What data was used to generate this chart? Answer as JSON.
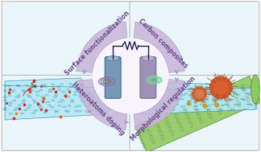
{
  "fig_width": 3.24,
  "fig_height": 1.89,
  "dpi": 100,
  "bg_color": "#ffffff",
  "quadrant_bg": "#eaf6fa",
  "arc_fill_color": "#c8b4d8",
  "arc_edge_color": "#b09ac8",
  "arc_text_color": "#6a4a8a",
  "center_bg": "#f8f4fc",
  "graphene_face": "#b8e8f4",
  "graphene_edge": "#48b8d0",
  "graphene_hex": "#3090b0",
  "graphene_bottom": "#e0f4f8",
  "nanotube_face": "#90c860",
  "nanotube_edge": "#508030",
  "nanoparticle_color": "#d86030",
  "nanoparticle_dark": "#b04820",
  "electrode_left": "#7898b8",
  "electrode_right": "#a090b8",
  "wire_color": "#222244",
  "panel_edge": "#bbbbbb",
  "label_tl": "Surface functionalization",
  "label_tr": "Carbon composites",
  "label_br": "Morphological regulation",
  "label_bl": "Heteroatoms doping"
}
